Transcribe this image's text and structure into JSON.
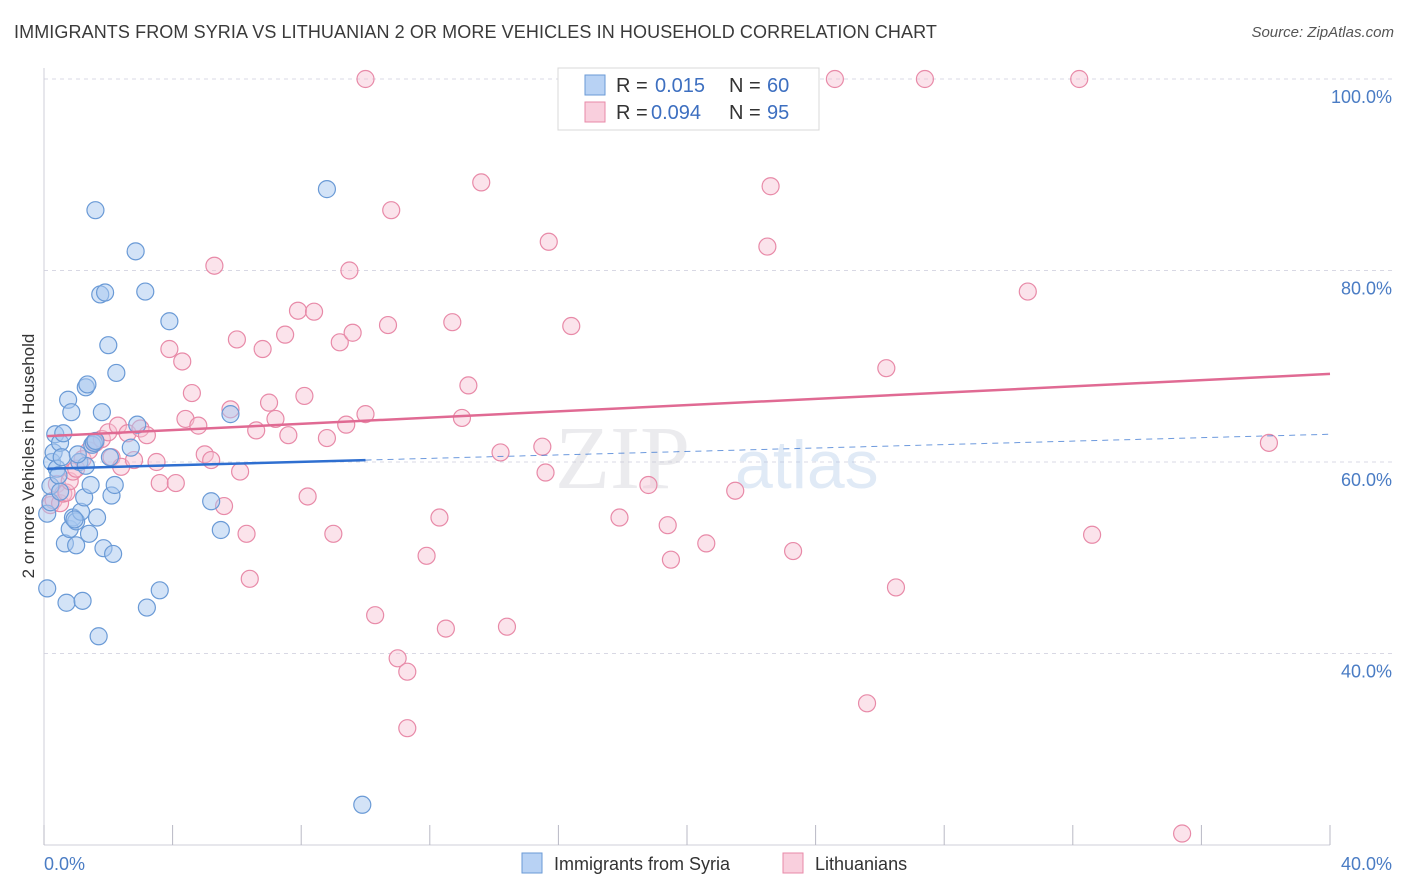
{
  "title": "IMMIGRANTS FROM SYRIA VS LITHUANIAN 2 OR MORE VEHICLES IN HOUSEHOLD CORRELATION CHART",
  "source": "Source: ZipAtlas.com",
  "watermark": {
    "zip": "ZIP",
    "atlas": "atlas"
  },
  "colors": {
    "syria_fill": "#a8c8f0",
    "syria_stroke": "#6a9ad6",
    "syria_line": "#2f6fd0",
    "lith_fill": "#f6c0d2",
    "lith_stroke": "#e88aa8",
    "lith_line": "#e06a93",
    "grid": "#d8d8e4",
    "axis_label": "#4a7cc4"
  },
  "legend": {
    "rows": [
      {
        "r_label": "R =",
        "r_value": "0.015",
        "n_label": "N =",
        "n_value": "60"
      },
      {
        "r_label": "R =",
        "r_value": "0.094",
        "n_label": "N =",
        "n_value": "95"
      }
    ]
  },
  "bottom_legend": {
    "syria": "Immigrants from Syria",
    "lith": "Lithuanians"
  },
  "chart_data": {
    "type": "scatter",
    "title": "IMMIGRANTS FROM SYRIA VS LITHUANIAN 2 OR MORE VEHICLES IN HOUSEHOLD CORRELATION CHART",
    "xlabel": "",
    "ylabel": "2 or more Vehicles in Household",
    "xlim": [
      0,
      40
    ],
    "ylim": [
      20,
      100
    ],
    "x_tick_labels": [
      "0.0%",
      "40.0%"
    ],
    "y_ticks": [
      40,
      60,
      80,
      100
    ],
    "y_tick_labels": [
      "40.0%",
      "60.0%",
      "80.0%",
      "100.0%"
    ],
    "series": [
      {
        "name": "Immigrants from Syria",
        "R": 0.015,
        "N": 60,
        "trend": {
          "x0": 0.1,
          "y0": 59.3,
          "x1": 10.0,
          "y1": 60.2,
          "dash_x1": 40.0,
          "dash_y1": 62.9
        },
        "points": [
          [
            0.1,
            54.6
          ],
          [
            0.1,
            46.8
          ],
          [
            0.2,
            55.8
          ],
          [
            0.2,
            57.5
          ],
          [
            0.25,
            60.0
          ],
          [
            0.3,
            61.0
          ],
          [
            0.35,
            62.9
          ],
          [
            0.4,
            59.3
          ],
          [
            0.45,
            58.6
          ],
          [
            0.5,
            62.0
          ],
          [
            0.55,
            60.5
          ],
          [
            0.6,
            63.0
          ],
          [
            0.65,
            51.5
          ],
          [
            0.7,
            45.3
          ],
          [
            0.75,
            66.5
          ],
          [
            0.8,
            53.0
          ],
          [
            0.85,
            65.2
          ],
          [
            0.9,
            54.2
          ],
          [
            1.0,
            51.3
          ],
          [
            1.0,
            53.8
          ],
          [
            1.1,
            60.0
          ],
          [
            1.15,
            54.8
          ],
          [
            1.2,
            45.5
          ],
          [
            1.25,
            56.3
          ],
          [
            1.3,
            67.8
          ],
          [
            1.35,
            68.1
          ],
          [
            1.4,
            52.5
          ],
          [
            1.45,
            57.6
          ],
          [
            1.5,
            61.8
          ],
          [
            1.55,
            62.0
          ],
          [
            1.6,
            86.3
          ],
          [
            1.65,
            54.2
          ],
          [
            1.7,
            41.8
          ],
          [
            1.75,
            77.5
          ],
          [
            1.8,
            65.2
          ],
          [
            1.85,
            51.0
          ],
          [
            1.9,
            77.7
          ],
          [
            2.0,
            72.2
          ],
          [
            2.05,
            60.5
          ],
          [
            2.1,
            56.5
          ],
          [
            2.15,
            50.4
          ],
          [
            2.2,
            57.6
          ],
          [
            2.25,
            69.3
          ],
          [
            2.9,
            63.9
          ],
          [
            2.85,
            82.0
          ],
          [
            3.15,
            77.8
          ],
          [
            3.2,
            44.8
          ],
          [
            3.6,
            46.6
          ],
          [
            3.9,
            74.7
          ],
          [
            5.2,
            55.9
          ],
          [
            5.5,
            52.9
          ],
          [
            5.8,
            65.0
          ],
          [
            8.8,
            88.5
          ],
          [
            9.9,
            24.2
          ],
          [
            1.3,
            59.6
          ],
          [
            0.95,
            54.0
          ],
          [
            1.05,
            60.8
          ],
          [
            2.7,
            61.5
          ],
          [
            0.5,
            56.9
          ],
          [
            1.6,
            62.2
          ]
        ]
      },
      {
        "name": "Lithuanians",
        "R": 0.094,
        "N": 95,
        "trend": {
          "x0": 0.1,
          "y0": 62.7,
          "x1": 40.0,
          "y1": 69.2
        },
        "points": [
          [
            0.2,
            55.5
          ],
          [
            0.3,
            56.0
          ],
          [
            0.4,
            57.7
          ],
          [
            0.5,
            55.7
          ],
          [
            0.6,
            56.7
          ],
          [
            0.7,
            56.8
          ],
          [
            0.8,
            58.0
          ],
          [
            0.9,
            59.0
          ],
          [
            1.0,
            59.3
          ],
          [
            1.2,
            60.3
          ],
          [
            1.4,
            61.2
          ],
          [
            1.6,
            62.0
          ],
          [
            1.8,
            62.4
          ],
          [
            2.0,
            63.1
          ],
          [
            2.1,
            60.5
          ],
          [
            2.3,
            63.8
          ],
          [
            2.4,
            59.5
          ],
          [
            2.6,
            63.0
          ],
          [
            2.8,
            60.2
          ],
          [
            3.0,
            63.5
          ],
          [
            3.2,
            62.8
          ],
          [
            3.5,
            60.0
          ],
          [
            3.6,
            57.8
          ],
          [
            3.9,
            71.8
          ],
          [
            4.1,
            57.8
          ],
          [
            4.3,
            70.5
          ],
          [
            4.4,
            64.5
          ],
          [
            4.6,
            67.2
          ],
          [
            4.8,
            63.8
          ],
          [
            5.0,
            60.8
          ],
          [
            5.2,
            60.2
          ],
          [
            5.3,
            80.5
          ],
          [
            5.6,
            55.4
          ],
          [
            5.8,
            65.5
          ],
          [
            6.0,
            72.8
          ],
          [
            6.1,
            59.0
          ],
          [
            6.3,
            52.5
          ],
          [
            6.4,
            47.8
          ],
          [
            6.6,
            63.3
          ],
          [
            6.8,
            71.8
          ],
          [
            7.0,
            66.2
          ],
          [
            7.2,
            64.5
          ],
          [
            7.5,
            73.3
          ],
          [
            7.6,
            62.8
          ],
          [
            7.9,
            75.8
          ],
          [
            8.1,
            66.9
          ],
          [
            8.2,
            56.4
          ],
          [
            8.4,
            75.7
          ],
          [
            8.8,
            62.5
          ],
          [
            9.0,
            52.5
          ],
          [
            9.2,
            72.5
          ],
          [
            9.4,
            63.9
          ],
          [
            9.5,
            80.0
          ],
          [
            9.6,
            73.5
          ],
          [
            10.0,
            65.0
          ],
          [
            10.0,
            100.0
          ],
          [
            10.3,
            44.0
          ],
          [
            10.7,
            74.3
          ],
          [
            10.8,
            86.3
          ],
          [
            11.0,
            39.5
          ],
          [
            11.3,
            38.1
          ],
          [
            11.3,
            32.2
          ],
          [
            11.9,
            50.2
          ],
          [
            12.3,
            54.2
          ],
          [
            12.5,
            42.6
          ],
          [
            12.7,
            74.6
          ],
          [
            13.0,
            64.6
          ],
          [
            13.2,
            68.0
          ],
          [
            13.6,
            89.2
          ],
          [
            14.2,
            61.0
          ],
          [
            14.4,
            42.8
          ],
          [
            15.5,
            61.6
          ],
          [
            15.6,
            58.9
          ],
          [
            15.7,
            83.0
          ],
          [
            16.4,
            74.2
          ],
          [
            17.9,
            54.2
          ],
          [
            18.5,
            100.0
          ],
          [
            18.8,
            57.6
          ],
          [
            19.4,
            53.4
          ],
          [
            19.5,
            49.8
          ],
          [
            20.6,
            51.5
          ],
          [
            21.5,
            57.0
          ],
          [
            22.5,
            82.5
          ],
          [
            22.6,
            88.8
          ],
          [
            23.3,
            50.7
          ],
          [
            24.6,
            100.0
          ],
          [
            25.6,
            34.8
          ],
          [
            26.2,
            69.8
          ],
          [
            26.5,
            46.9
          ],
          [
            27.4,
            100.0
          ],
          [
            30.6,
            77.8
          ],
          [
            32.2,
            100.0
          ],
          [
            32.6,
            52.4
          ],
          [
            35.4,
            21.2
          ],
          [
            38.1,
            62.0
          ]
        ]
      }
    ]
  }
}
